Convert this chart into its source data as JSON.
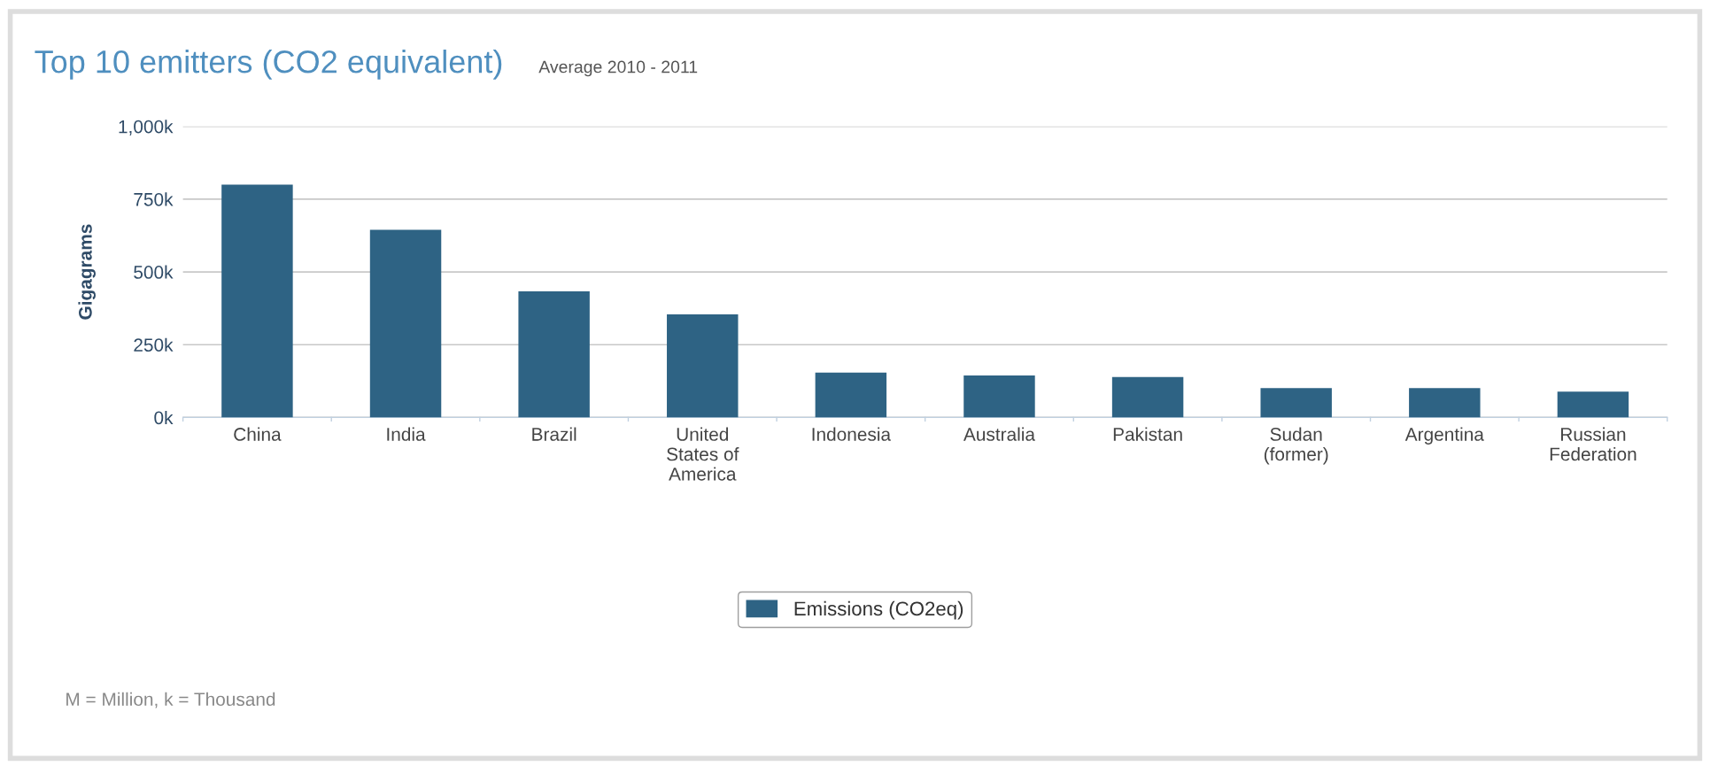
{
  "chart_data": {
    "type": "bar",
    "title": "Top 10 emitters (CO2 equivalent)",
    "subtitle": "Average 2010 - 2011",
    "ylabel": "Gigagrams",
    "categories": [
      "China",
      "India",
      "Brazil",
      "United\nStates of\nAmerica",
      "Indonesia",
      "Australia",
      "Pakistan",
      "Sudan\n(former)",
      "Argentina",
      "Russian\nFederation"
    ],
    "series": [
      {
        "name": "Emissions (CO2eq)",
        "color": "#2e6384",
        "values": [
          800000,
          645000,
          433000,
          354000,
          154000,
          144000,
          139000,
          101000,
          101000,
          89000
        ]
      }
    ],
    "ylim": [
      0,
      1000000
    ],
    "yticks": [
      {
        "value": 0,
        "label": "0k"
      },
      {
        "value": 250000,
        "label": "250k"
      },
      {
        "value": 500000,
        "label": "500k"
      },
      {
        "value": 750000,
        "label": "750k"
      },
      {
        "value": 1000000,
        "label": "1,000k"
      }
    ],
    "grid": "y",
    "legend": "bottom",
    "annotations": [
      "M = Million, k = Thousand"
    ]
  }
}
